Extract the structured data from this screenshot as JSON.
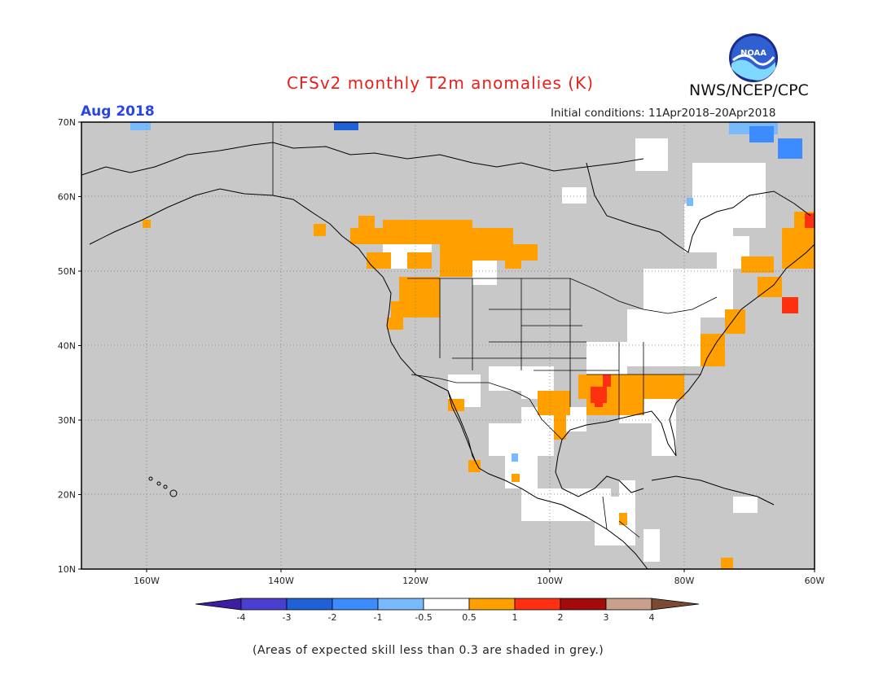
{
  "header": {
    "title": "CFSv2 monthly T2m anomalies (K)",
    "agency": "NWS/NCEP/CPC",
    "period": "Aug 2018",
    "initial_conditions": "Initial conditions: 11Apr2018–20Apr2018",
    "logo_text": "NOAA"
  },
  "map": {
    "lat_labels": [
      "70N",
      "60N",
      "50N",
      "40N",
      "30N",
      "20N",
      "10N"
    ],
    "lon_labels": [
      "160W",
      "140W",
      "120W",
      "100W",
      "80W",
      "60W"
    ],
    "background_color": "#c8c8c8",
    "anomaly_regions": [
      {
        "name": "northwest-warm",
        "color": "#ff9f00"
      },
      {
        "name": "south-central-warm",
        "color": "#ff9f00"
      },
      {
        "name": "south-central-hot",
        "color": "#ff3010"
      },
      {
        "name": "northeast-warm",
        "color": "#ff9f00"
      },
      {
        "name": "arctic-cool",
        "color": "#3c8cff"
      }
    ]
  },
  "legend": {
    "labels": [
      "-4",
      "-3",
      "-2",
      "-1",
      "-0.5",
      "0.5",
      "1",
      "2",
      "3",
      "4"
    ],
    "colors": [
      "#3c1ea0",
      "#4a3fd0",
      "#1f62d8",
      "#3c8cff",
      "#79baff",
      "#ffffff",
      "#ff9f00",
      "#ff3010",
      "#a50a0a",
      "#c9a08c",
      "#7a4a32"
    ]
  },
  "footer": {
    "note": "(Areas of expected skill less than 0.3 are shaded in grey.)"
  }
}
